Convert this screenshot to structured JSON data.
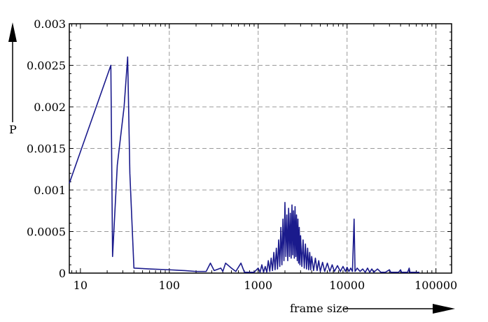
{
  "chart_data": {
    "type": "line",
    "title": "",
    "xlabel": "frame size",
    "ylabel": "P",
    "x_scale": "log",
    "xlim": [
      7.5,
      150000
    ],
    "ylim": [
      0,
      0.003
    ],
    "x_ticks": [
      10,
      100,
      1000,
      10000,
      100000
    ],
    "x_tick_labels": [
      "10",
      "100",
      "1000",
      "10000",
      "100000"
    ],
    "y_ticks": [
      0,
      0.0005,
      0.001,
      0.0015,
      0.002,
      0.0025,
      0.003
    ],
    "y_tick_labels": [
      "0",
      "0.0005",
      "0.001",
      "0.0015",
      "0.002",
      "0.0025",
      "0.003"
    ],
    "grid": true,
    "line_color": "#1a1a8c",
    "series": [
      {
        "points": [
          [
            7.5,
            0.00108
          ],
          [
            22,
            0.0025
          ],
          [
            23,
            0.0002
          ],
          [
            26,
            0.0013
          ],
          [
            31,
            0.002
          ],
          [
            34,
            0.0026
          ],
          [
            36,
            0.0012
          ],
          [
            40,
            6e-05
          ],
          [
            60,
            5e-05
          ],
          [
            100,
            4e-05
          ],
          [
            150,
            3e-05
          ],
          [
            200,
            2e-05
          ],
          [
            260,
            2e-05
          ],
          [
            290,
            0.00012
          ],
          [
            320,
            3e-05
          ],
          [
            380,
            6e-05
          ],
          [
            400,
            2e-05
          ],
          [
            430,
            0.00012
          ],
          [
            500,
            6e-05
          ],
          [
            560,
            2e-05
          ],
          [
            640,
            0.00012
          ],
          [
            700,
            1e-05
          ],
          [
            900,
            1e-05
          ],
          [
            1000,
            6e-05
          ],
          [
            1050,
            1e-05
          ],
          [
            1100,
            0.0001
          ],
          [
            1150,
            1e-05
          ],
          [
            1200,
            8e-05
          ],
          [
            1250,
            1e-05
          ],
          [
            1300,
            0.00015
          ],
          [
            1350,
            2e-05
          ],
          [
            1400,
            0.00018
          ],
          [
            1450,
            3e-05
          ],
          [
            1500,
            0.00025
          ],
          [
            1550,
            4e-05
          ],
          [
            1600,
            0.0003
          ],
          [
            1650,
            5e-05
          ],
          [
            1700,
            0.0004
          ],
          [
            1750,
            8e-05
          ],
          [
            1800,
            0.00055
          ],
          [
            1850,
            0.0001
          ],
          [
            1900,
            0.00065
          ],
          [
            1950,
            0.00015
          ],
          [
            2000,
            0.00085
          ],
          [
            2050,
            0.0002
          ],
          [
            2100,
            0.0007
          ],
          [
            2150,
            0.00015
          ],
          [
            2200,
            0.00078
          ],
          [
            2250,
            0.0002
          ],
          [
            2300,
            0.00072
          ],
          [
            2350,
            0.00018
          ],
          [
            2400,
            0.00082
          ],
          [
            2450,
            0.00022
          ],
          [
            2500,
            0.00075
          ],
          [
            2550,
            0.00018
          ],
          [
            2600,
            0.0008
          ],
          [
            2650,
            0.0002
          ],
          [
            2700,
            0.0007
          ],
          [
            2750,
            0.00015
          ],
          [
            2800,
            0.00065
          ],
          [
            2850,
            0.00012
          ],
          [
            2900,
            0.00055
          ],
          [
            2950,
            0.0001
          ],
          [
            3000,
            0.00045
          ],
          [
            3100,
            8e-05
          ],
          [
            3200,
            0.0004
          ],
          [
            3300,
            6e-05
          ],
          [
            3400,
            0.00035
          ],
          [
            3500,
            5e-05
          ],
          [
            3600,
            0.0003
          ],
          [
            3700,
            4e-05
          ],
          [
            3800,
            0.00025
          ],
          [
            3900,
            4e-05
          ],
          [
            4000,
            0.0002
          ],
          [
            4200,
            3e-05
          ],
          [
            4400,
            0.00018
          ],
          [
            4600,
            3e-05
          ],
          [
            4800,
            0.00015
          ],
          [
            5000,
            2e-05
          ],
          [
            5300,
            0.00013
          ],
          [
            5600,
            2e-05
          ],
          [
            6000,
            0.00012
          ],
          [
            6400,
            2e-05
          ],
          [
            6800,
            0.0001
          ],
          [
            7200,
            2e-05
          ],
          [
            7800,
            9e-05
          ],
          [
            8400,
            2e-05
          ],
          [
            9000,
            8e-05
          ],
          [
            9600,
            2e-05
          ],
          [
            10000,
            7e-05
          ],
          [
            10500,
            2e-05
          ],
          [
            11000,
            6e-05
          ],
          [
            11500,
            2e-05
          ],
          [
            12000,
            0.00065
          ],
          [
            12300,
            2e-05
          ],
          [
            13000,
            6e-05
          ],
          [
            14000,
            2e-05
          ],
          [
            15000,
            5e-05
          ],
          [
            16000,
            1e-05
          ],
          [
            17000,
            6e-05
          ],
          [
            18000,
            1e-05
          ],
          [
            19000,
            5e-05
          ],
          [
            20000,
            1e-05
          ],
          [
            22000,
            5e-05
          ],
          [
            24000,
            1e-05
          ],
          [
            27000,
            1e-05
          ],
          [
            30000,
            4e-05
          ],
          [
            31000,
            1e-05
          ],
          [
            38000,
            1e-05
          ],
          [
            40000,
            4e-05
          ],
          [
            41000,
            1e-05
          ],
          [
            48000,
            1e-05
          ],
          [
            50000,
            6e-05
          ],
          [
            51000,
            1e-05
          ],
          [
            65000,
            1e-05
          ]
        ]
      }
    ]
  }
}
